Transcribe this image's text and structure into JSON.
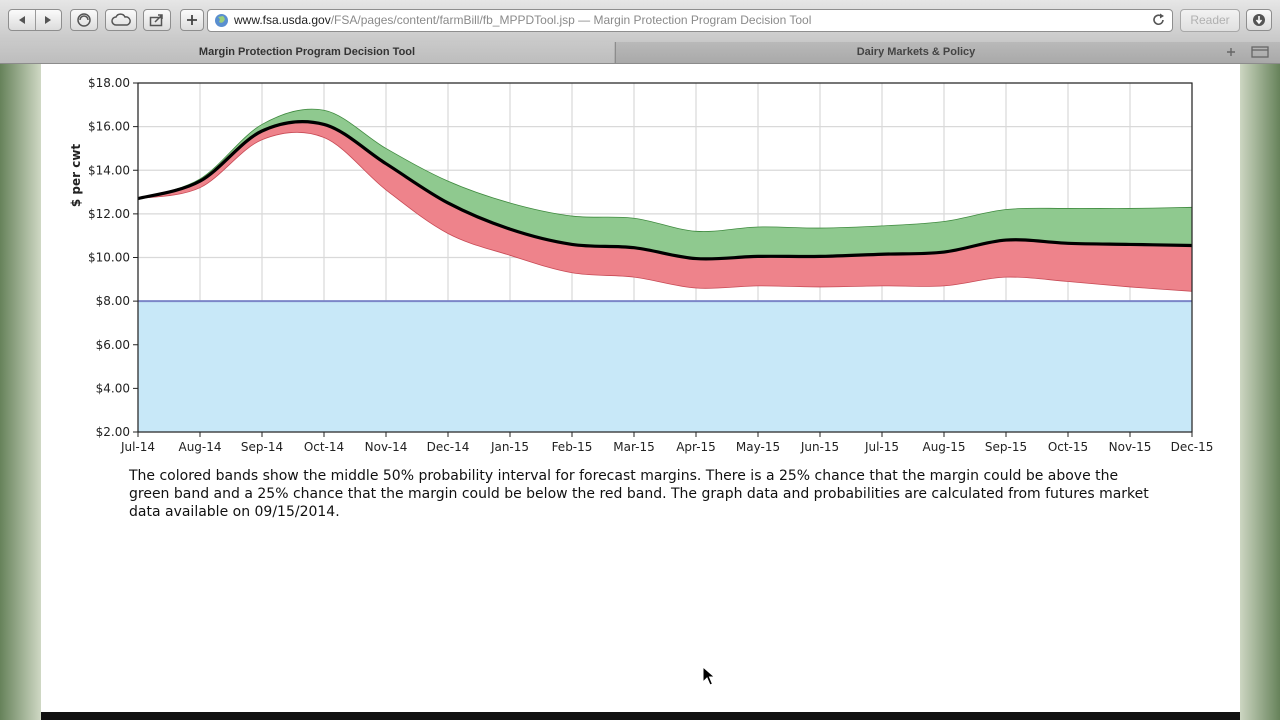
{
  "browser": {
    "address": {
      "host": "www.fsa.usda.gov",
      "path": "/FSA/pages/content/farmBill/fb_MPPDTool.jsp",
      "separator": " — ",
      "page_title": "Margin Protection Program Decision Tool"
    },
    "reader_label": "Reader",
    "tabs": [
      {
        "label": "Margin Protection Program Decision Tool",
        "active": true
      },
      {
        "label": "Dairy Markets & Policy",
        "active": false
      }
    ]
  },
  "chart_data": {
    "type": "area",
    "title": "",
    "xlabel": "",
    "ylabel": "$ per cwt",
    "x": [
      "Jul-14",
      "Aug-14",
      "Sep-14",
      "Oct-14",
      "Nov-14",
      "Dec-14",
      "Jan-15",
      "Feb-15",
      "Mar-15",
      "Apr-15",
      "May-15",
      "Jun-15",
      "Jul-15",
      "Aug-15",
      "Sep-15",
      "Oct-15",
      "Nov-15",
      "Dec-15"
    ],
    "ylim": [
      2,
      18
    ],
    "yticks": [
      "$2.00",
      "$4.00",
      "$6.00",
      "$8.00",
      "$10.00",
      "$12.00",
      "$14.00",
      "$16.00",
      "$18.00"
    ],
    "grid": true,
    "coverage_level": 8.0,
    "series": [
      {
        "role": "upper",
        "values": [
          12.7,
          13.6,
          16.1,
          16.75,
          15.0,
          13.5,
          12.5,
          11.9,
          11.8,
          11.2,
          11.4,
          11.35,
          11.45,
          11.65,
          12.2,
          12.25,
          12.25,
          12.3
        ]
      },
      {
        "role": "median",
        "values": [
          12.7,
          13.5,
          15.8,
          16.1,
          14.3,
          12.5,
          11.3,
          10.6,
          10.45,
          9.95,
          10.05,
          10.05,
          10.15,
          10.25,
          10.8,
          10.65,
          10.6,
          10.55
        ]
      },
      {
        "role": "lower",
        "values": [
          12.7,
          13.2,
          15.4,
          15.5,
          13.1,
          11.1,
          10.1,
          9.3,
          9.1,
          8.6,
          8.7,
          8.65,
          8.7,
          8.7,
          9.1,
          8.9,
          8.65,
          8.45
        ]
      }
    ],
    "colors": {
      "upper_band": "#8fc98f",
      "lower_band": "#ee838b",
      "median_line": "#000000",
      "coverage_fill": "#c8e8f8",
      "coverage_line": "#7c86c8"
    }
  },
  "caption": "The colored bands show the middle 50% probability interval for forecast margins. There is a 25% chance that the margin could be above the green band and a 25% chance that the margin could be below the red band. The graph data and probabilities are calculated from futures market data available on 09/15/2014."
}
